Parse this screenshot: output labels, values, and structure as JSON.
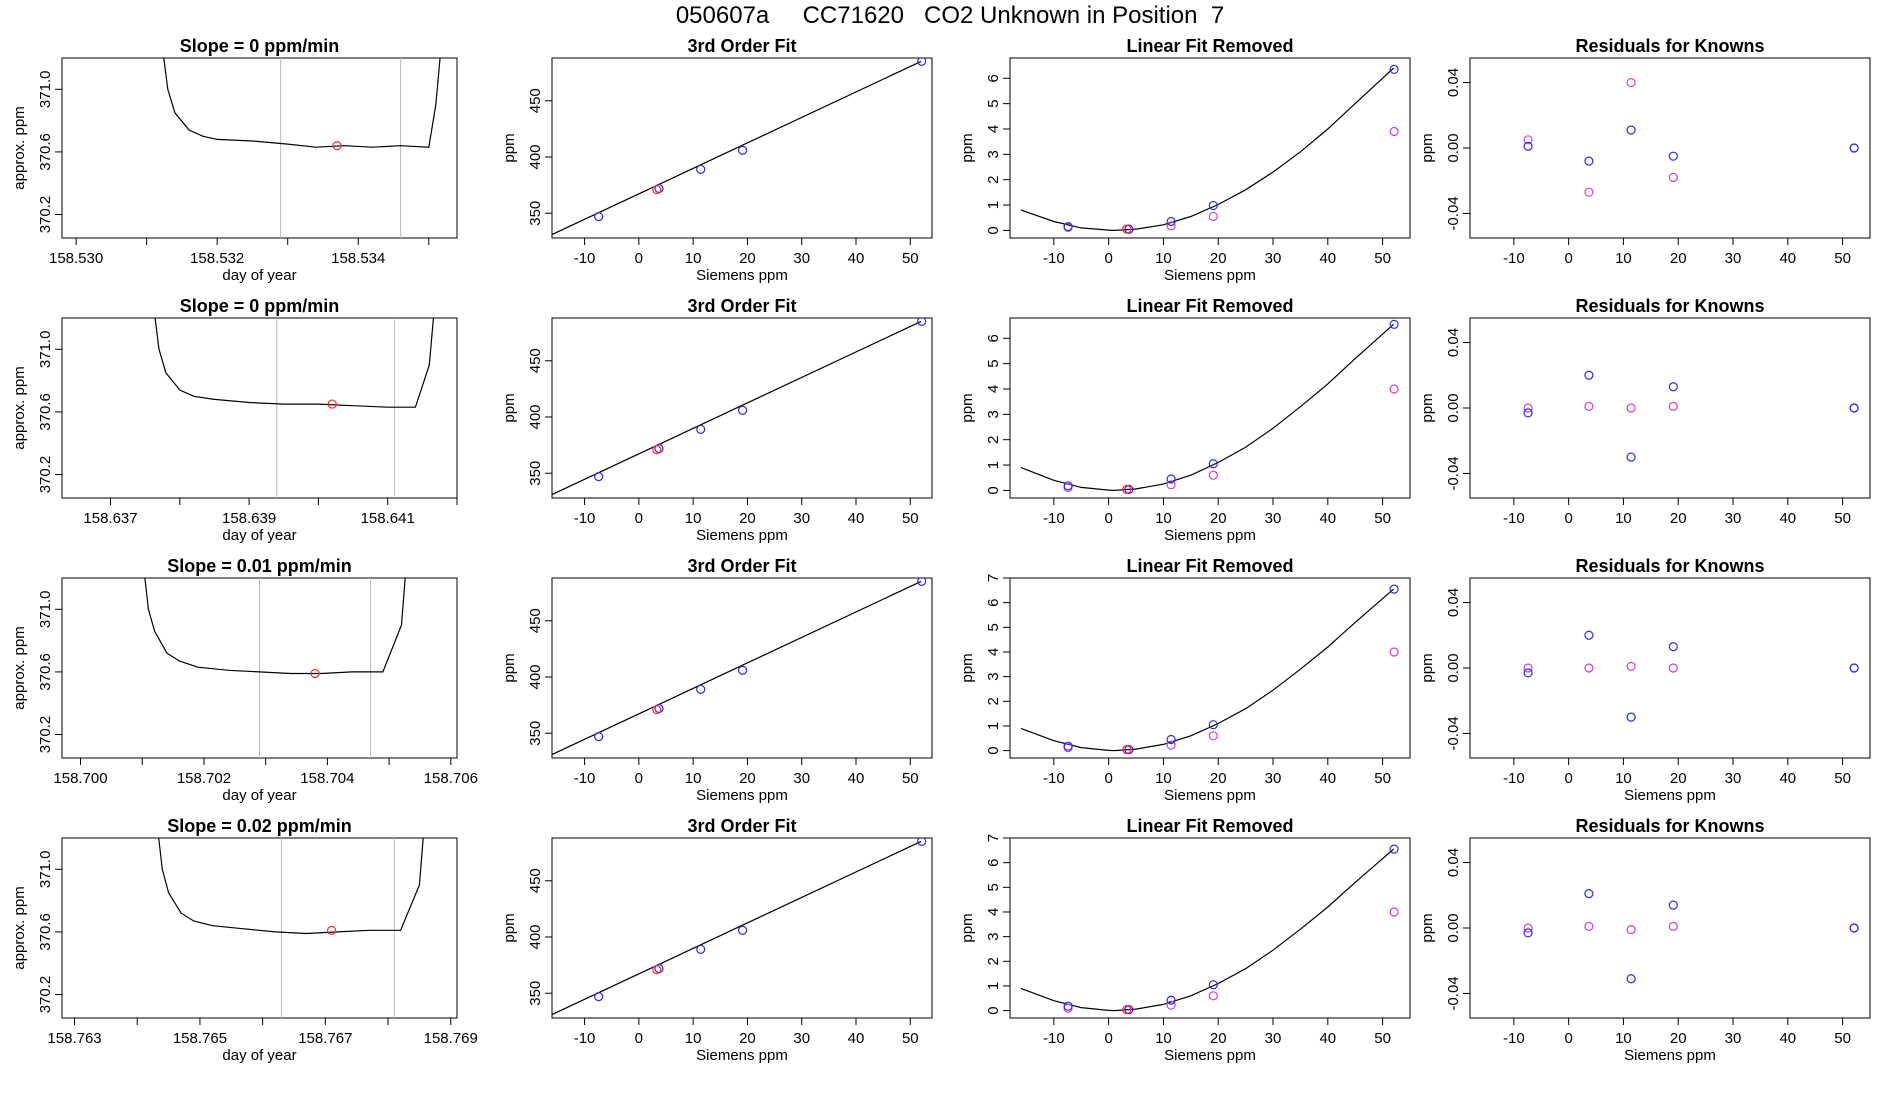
{
  "page": {
    "title": "050607a     CC71620   CO2 Unknown in Position  7"
  },
  "labels": {
    "fit_title": "3rd Order Fit",
    "linear_removed_title": "Linear Fit Removed",
    "residuals_title": "Residuals for Knowns",
    "siemens_xlabel": "Siemens ppm",
    "ppm_ylabel": "ppm",
    "doy_xlabel": "day of year",
    "approx_ylabel": "approx. ppm"
  },
  "colors": {
    "line": "#000000",
    "window_line": "#bbbbbb",
    "unknown_point": "#ff2a2a",
    "known_point": "#2a2aff",
    "alt_point": "#d23cd2"
  },
  "chart_data": [
    {
      "row": 1,
      "panel": "trace",
      "type": "line",
      "title": "Slope =  0  ppm/min",
      "xlabel": "day of year",
      "ylabel": "approx. ppm",
      "xlim": [
        158.5298,
        158.5354
      ],
      "ylim": [
        370.05,
        371.2
      ],
      "xticks": [
        158.53,
        158.531,
        158.532,
        158.533,
        158.534,
        158.535
      ],
      "xtick_labels": [
        "158.530",
        "",
        "158.532",
        "",
        "158.534",
        ""
      ],
      "yticks": [
        370.2,
        370.6,
        371.0
      ],
      "ytick_labels": [
        "370.2",
        "370.6",
        "371.0"
      ],
      "vlines": [
        158.5329,
        158.5346
      ],
      "x": [
        158.5312,
        158.5313,
        158.5314,
        158.5316,
        158.5318,
        158.532,
        158.5325,
        158.533,
        158.5334,
        158.5338,
        158.5342,
        158.5346,
        158.535,
        158.5351,
        158.5352
      ],
      "y": [
        371.35,
        371.0,
        370.85,
        370.74,
        370.7,
        370.68,
        370.67,
        370.65,
        370.63,
        370.64,
        370.63,
        370.64,
        370.63,
        370.9,
        371.4
      ],
      "marker": {
        "x": 158.5337,
        "y": 370.64
      }
    },
    {
      "row": 1,
      "panel": "fit",
      "type": "scatter",
      "title": "3rd Order Fit",
      "xlabel": "Siemens ppm",
      "ylabel": "ppm",
      "xlim": [
        -16,
        54
      ],
      "ylim": [
        328,
        488
      ],
      "xticks": [
        -10,
        0,
        10,
        20,
        30,
        40,
        50
      ],
      "yticks": [
        350,
        400,
        450
      ],
      "curve": {
        "x": [
          -16,
          52
        ],
        "y": [
          331,
          485
        ]
      },
      "knowns": {
        "x": [
          -7.4,
          3.7,
          11.4,
          19.1,
          52.1
        ],
        "y": [
          347,
          372,
          389,
          406,
          485
        ]
      },
      "unknown": {
        "x": [
          3.3
        ],
        "y": [
          371
        ]
      }
    },
    {
      "row": 1,
      "panel": "linear_removed",
      "type": "scatter",
      "title": "Linear Fit Removed",
      "xlabel": "Siemens ppm",
      "ylabel": "ppm",
      "xlim": [
        -18,
        55
      ],
      "ylim": [
        -0.3,
        6.8
      ],
      "xticks": [
        -10,
        0,
        10,
        20,
        30,
        40,
        50
      ],
      "yticks": [
        0,
        1,
        2,
        3,
        4,
        5,
        6
      ],
      "curve": {
        "x": [
          -16,
          -10,
          -5,
          0,
          1,
          5,
          10,
          15,
          20,
          25,
          30,
          35,
          40,
          45,
          52
        ],
        "y": [
          0.8,
          0.35,
          0.1,
          0.01,
          0.0,
          0.05,
          0.22,
          0.55,
          1.02,
          1.6,
          2.3,
          3.1,
          4.0,
          5.0,
          6.4
        ]
      },
      "knowns": {
        "x": [
          -7.4,
          3.7,
          11.4,
          19.1,
          52.1
        ],
        "y": [
          0.15,
          0.05,
          0.35,
          0.98,
          6.35
        ]
      },
      "alt": {
        "x": [
          -7.4,
          3.7,
          11.4,
          19.1,
          52.1
        ],
        "y": [
          0.12,
          0.04,
          0.18,
          0.55,
          3.9
        ]
      },
      "unknown": {
        "x": [
          3.3
        ],
        "y": [
          0.05
        ]
      }
    },
    {
      "row": 1,
      "panel": "residuals",
      "type": "scatter",
      "title": "Residuals for Knowns",
      "xlabel": "",
      "ylabel": "ppm",
      "xlim": [
        -18,
        55
      ],
      "ylim": [
        -0.055,
        0.055
      ],
      "xticks": [
        -10,
        0,
        10,
        20,
        30,
        40,
        50
      ],
      "yticks": [
        -0.04,
        0.0,
        0.04
      ],
      "ytick_labels": [
        "-0.04",
        "0.00",
        "0.04"
      ],
      "knowns": {
        "x": [
          -7.4,
          3.7,
          11.4,
          19.1,
          52.1
        ],
        "y": [
          0.001,
          -0.008,
          0.011,
          -0.005,
          0.0
        ]
      },
      "alt": {
        "x": [
          -7.4,
          3.7,
          11.4,
          19.1,
          52.1
        ],
        "y": [
          0.005,
          -0.027,
          0.04,
          -0.018,
          0.0
        ]
      }
    },
    {
      "row": 2,
      "panel": "trace",
      "type": "line",
      "title": "Slope =  0  ppm/min",
      "xlabel": "day of year",
      "ylabel": "approx. ppm",
      "xlim": [
        158.6363,
        158.642
      ],
      "ylim": [
        370.05,
        371.2
      ],
      "xticks": [
        158.637,
        158.638,
        158.639,
        158.64,
        158.641,
        158.642
      ],
      "xtick_labels": [
        "158.637",
        "",
        "158.639",
        "",
        "158.641",
        ""
      ],
      "yticks": [
        370.2,
        370.6,
        371.0
      ],
      "ytick_labels": [
        "370.2",
        "370.6",
        "371.0"
      ],
      "vlines": [
        158.6394,
        158.6411
      ],
      "x": [
        158.6376,
        158.6377,
        158.6378,
        158.638,
        158.6382,
        158.6385,
        158.639,
        158.6395,
        158.64,
        158.6405,
        158.641,
        158.6414,
        158.6416,
        158.6417
      ],
      "y": [
        371.35,
        371.0,
        370.85,
        370.74,
        370.7,
        370.68,
        370.66,
        370.65,
        370.65,
        370.64,
        370.63,
        370.63,
        370.9,
        371.4
      ],
      "marker": {
        "x": 158.6402,
        "y": 370.65
      }
    },
    {
      "row": 2,
      "panel": "fit",
      "type": "scatter",
      "title": "3rd Order Fit",
      "xlabel": "Siemens ppm",
      "ylabel": "ppm",
      "xlim": [
        -16,
        54
      ],
      "ylim": [
        328,
        488
      ],
      "xticks": [
        -10,
        0,
        10,
        20,
        30,
        40,
        50
      ],
      "yticks": [
        350,
        400,
        450
      ],
      "curve": {
        "x": [
          -16,
          52
        ],
        "y": [
          331,
          485
        ]
      },
      "knowns": {
        "x": [
          -7.4,
          3.7,
          11.4,
          19.1,
          52.1
        ],
        "y": [
          347,
          372,
          389,
          406,
          485
        ]
      },
      "unknown": {
        "x": [
          3.3
        ],
        "y": [
          371
        ]
      }
    },
    {
      "row": 2,
      "panel": "linear_removed",
      "type": "scatter",
      "title": "Linear Fit Removed",
      "xlabel": "Siemens ppm",
      "ylabel": "ppm",
      "xlim": [
        -18,
        55
      ],
      "ylim": [
        -0.3,
        6.8
      ],
      "xticks": [
        -10,
        0,
        10,
        20,
        30,
        40,
        50
      ],
      "yticks": [
        0,
        1,
        2,
        3,
        4,
        5,
        6
      ],
      "curve": {
        "x": [
          -16,
          -10,
          -5,
          0,
          1,
          5,
          10,
          15,
          20,
          25,
          30,
          35,
          40,
          45,
          52
        ],
        "y": [
          0.9,
          0.4,
          0.12,
          0.01,
          0.0,
          0.06,
          0.25,
          0.6,
          1.1,
          1.7,
          2.45,
          3.3,
          4.2,
          5.2,
          6.55
        ]
      },
      "knowns": {
        "x": [
          -7.4,
          3.7,
          11.4,
          19.1,
          52.1
        ],
        "y": [
          0.18,
          0.04,
          0.45,
          1.05,
          6.55
        ]
      },
      "alt": {
        "x": [
          -7.4,
          3.7,
          11.4,
          19.1,
          52.1
        ],
        "y": [
          0.12,
          0.04,
          0.22,
          0.6,
          4.0
        ]
      },
      "unknown": {
        "x": [
          3.3
        ],
        "y": [
          0.04
        ]
      }
    },
    {
      "row": 2,
      "panel": "residuals",
      "type": "scatter",
      "title": "Residuals for Knowns",
      "xlabel": "",
      "ylabel": "ppm",
      "xlim": [
        -18,
        55
      ],
      "ylim": [
        -0.055,
        0.055
      ],
      "xticks": [
        -10,
        0,
        10,
        20,
        30,
        40,
        50
      ],
      "yticks": [
        -0.04,
        0.0,
        0.04
      ],
      "ytick_labels": [
        "-0.04",
        "0.00",
        "0.04"
      ],
      "knowns": {
        "x": [
          -7.4,
          3.7,
          11.4,
          19.1,
          52.1
        ],
        "y": [
          -0.003,
          0.02,
          -0.03,
          0.013,
          0.0
        ]
      },
      "alt": {
        "x": [
          -7.4,
          3.7,
          11.4,
          19.1,
          52.1
        ],
        "y": [
          0.0,
          0.001,
          0.0,
          0.001,
          0.0
        ]
      }
    },
    {
      "row": 3,
      "panel": "trace",
      "type": "line",
      "title": "Slope =  0.01  ppm/min",
      "xlabel": "day of year",
      "ylabel": "approx. ppm",
      "xlim": [
        158.6997,
        158.7061
      ],
      "ylim": [
        370.05,
        371.2
      ],
      "xticks": [
        158.7,
        158.701,
        158.702,
        158.703,
        158.704,
        158.705,
        158.706
      ],
      "xtick_labels": [
        "158.700",
        "",
        "158.702",
        "",
        "158.704",
        "",
        "158.706"
      ],
      "yticks": [
        370.2,
        370.6,
        371.0
      ],
      "ytick_labels": [
        "370.2",
        "370.6",
        "371.0"
      ],
      "vlines": [
        158.7029,
        158.7047
      ],
      "x": [
        158.701,
        158.7011,
        158.7012,
        158.7014,
        158.7016,
        158.7019,
        158.7024,
        158.7029,
        158.7034,
        158.7039,
        158.7044,
        158.7049,
        158.7052,
        158.7053
      ],
      "y": [
        371.35,
        371.0,
        370.86,
        370.72,
        370.67,
        370.63,
        370.61,
        370.6,
        370.59,
        370.59,
        370.6,
        370.6,
        370.9,
        371.4
      ],
      "marker": {
        "x": 158.7038,
        "y": 370.59
      }
    },
    {
      "row": 3,
      "panel": "fit",
      "type": "scatter",
      "title": "3rd Order Fit",
      "xlabel": "Siemens ppm",
      "ylabel": "ppm",
      "xlim": [
        -16,
        54
      ],
      "ylim": [
        328,
        488
      ],
      "xticks": [
        -10,
        0,
        10,
        20,
        30,
        40,
        50
      ],
      "yticks": [
        350,
        400,
        450
      ],
      "curve": {
        "x": [
          -16,
          52
        ],
        "y": [
          331,
          485
        ]
      },
      "knowns": {
        "x": [
          -7.4,
          3.7,
          11.4,
          19.1,
          52.1
        ],
        "y": [
          347,
          372,
          389,
          406,
          485
        ]
      },
      "unknown": {
        "x": [
          3.3
        ],
        "y": [
          371
        ]
      }
    },
    {
      "row": 3,
      "panel": "linear_removed",
      "type": "scatter",
      "title": "Linear Fit Removed",
      "xlabel": "Siemens ppm",
      "ylabel": "ppm",
      "xlim": [
        -18,
        55
      ],
      "ylim": [
        -0.3,
        7.0
      ],
      "xticks": [
        -10,
        0,
        10,
        20,
        30,
        40,
        50
      ],
      "yticks": [
        0,
        1,
        2,
        3,
        4,
        5,
        6,
        7
      ],
      "curve": {
        "x": [
          -16,
          -10,
          -5,
          0,
          1,
          5,
          10,
          15,
          20,
          25,
          30,
          35,
          40,
          45,
          52
        ],
        "y": [
          0.9,
          0.4,
          0.12,
          0.01,
          0.0,
          0.06,
          0.25,
          0.6,
          1.1,
          1.7,
          2.45,
          3.3,
          4.2,
          5.2,
          6.55
        ]
      },
      "knowns": {
        "x": [
          -7.4,
          3.7,
          11.4,
          19.1,
          52.1
        ],
        "y": [
          0.18,
          0.04,
          0.45,
          1.05,
          6.55
        ]
      },
      "alt": {
        "x": [
          -7.4,
          3.7,
          11.4,
          19.1,
          52.1
        ],
        "y": [
          0.12,
          0.04,
          0.22,
          0.6,
          4.0
        ]
      },
      "unknown": {
        "x": [
          3.3
        ],
        "y": [
          0.04
        ]
      }
    },
    {
      "row": 3,
      "panel": "residuals",
      "type": "scatter",
      "title": "Residuals for Knowns",
      "xlabel": "Siemens ppm",
      "ylabel": "ppm",
      "xlim": [
        -18,
        55
      ],
      "ylim": [
        -0.055,
        0.055
      ],
      "xticks": [
        -10,
        0,
        10,
        20,
        30,
        40,
        50
      ],
      "yticks": [
        -0.04,
        0.0,
        0.04
      ],
      "ytick_labels": [
        "-0.04",
        "0.00",
        "0.04"
      ],
      "knowns": {
        "x": [
          -7.4,
          3.7,
          11.4,
          19.1,
          52.1
        ],
        "y": [
          -0.003,
          0.02,
          -0.03,
          0.013,
          0.0
        ]
      },
      "alt": {
        "x": [
          -7.4,
          3.7,
          11.4,
          19.1,
          52.1
        ],
        "y": [
          0.0,
          0.0,
          0.001,
          0.0,
          0.0
        ]
      }
    },
    {
      "row": 4,
      "panel": "trace",
      "type": "line",
      "title": "Slope =  0.02  ppm/min",
      "xlabel": "day of year",
      "ylabel": "approx. ppm",
      "xlim": [
        158.7628,
        158.7691
      ],
      "ylim": [
        370.05,
        371.2
      ],
      "xticks": [
        158.763,
        158.764,
        158.765,
        158.766,
        158.767,
        158.768,
        158.769
      ],
      "xtick_labels": [
        "158.763",
        "",
        "158.765",
        "",
        "158.767",
        "",
        "158.769"
      ],
      "yticks": [
        370.2,
        370.6,
        371.0
      ],
      "ytick_labels": [
        "370.2",
        "370.6",
        "371.0"
      ],
      "vlines": [
        158.7663,
        158.7681
      ],
      "x": [
        158.7643,
        158.7644,
        158.7645,
        158.7647,
        158.7649,
        158.7652,
        158.7657,
        158.7662,
        158.7667,
        158.7672,
        158.7677,
        158.7682,
        158.7685,
        158.7686
      ],
      "y": [
        371.35,
        371.0,
        370.85,
        370.72,
        370.67,
        370.64,
        370.62,
        370.6,
        370.59,
        370.6,
        370.61,
        370.61,
        370.9,
        371.4
      ],
      "marker": {
        "x": 158.7671,
        "y": 370.61
      }
    },
    {
      "row": 4,
      "panel": "fit",
      "type": "scatter",
      "title": "3rd Order Fit",
      "xlabel": "Siemens ppm",
      "ylabel": "ppm",
      "xlim": [
        -16,
        54
      ],
      "ylim": [
        328,
        488
      ],
      "xticks": [
        -10,
        0,
        10,
        20,
        30,
        40,
        50
      ],
      "yticks": [
        350,
        400,
        450
      ],
      "curve": {
        "x": [
          -16,
          52
        ],
        "y": [
          331,
          485
        ]
      },
      "knowns": {
        "x": [
          -7.4,
          3.7,
          11.4,
          19.1,
          52.1
        ],
        "y": [
          347,
          372,
          389,
          406,
          485
        ]
      },
      "unknown": {
        "x": [
          3.3
        ],
        "y": [
          371
        ]
      }
    },
    {
      "row": 4,
      "panel": "linear_removed",
      "type": "scatter",
      "title": "Linear Fit Removed",
      "xlabel": "Siemens ppm",
      "ylabel": "ppm",
      "xlim": [
        -18,
        55
      ],
      "ylim": [
        -0.3,
        7.0
      ],
      "xticks": [
        -10,
        0,
        10,
        20,
        30,
        40,
        50
      ],
      "yticks": [
        0,
        1,
        2,
        3,
        4,
        5,
        6,
        7
      ],
      "curve": {
        "x": [
          -16,
          -10,
          -5,
          0,
          1,
          5,
          10,
          15,
          20,
          25,
          30,
          35,
          40,
          45,
          52
        ],
        "y": [
          0.9,
          0.4,
          0.12,
          0.01,
          0.0,
          0.06,
          0.25,
          0.6,
          1.1,
          1.7,
          2.45,
          3.3,
          4.2,
          5.2,
          6.55
        ]
      },
      "knowns": {
        "x": [
          -7.4,
          3.7,
          11.4,
          19.1,
          52.1
        ],
        "y": [
          0.18,
          0.04,
          0.42,
          1.05,
          6.55
        ]
      },
      "alt": {
        "x": [
          -7.4,
          3.7,
          11.4,
          19.1,
          52.1
        ],
        "y": [
          0.1,
          0.04,
          0.22,
          0.6,
          4.0
        ]
      },
      "unknown": {
        "x": [
          3.3
        ],
        "y": [
          0.04
        ]
      }
    },
    {
      "row": 4,
      "panel": "residuals",
      "type": "scatter",
      "title": "Residuals for Knowns",
      "xlabel": "Siemens ppm",
      "ylabel": "ppm",
      "xlim": [
        -18,
        55
      ],
      "ylim": [
        -0.055,
        0.055
      ],
      "xticks": [
        -10,
        0,
        10,
        20,
        30,
        40,
        50
      ],
      "yticks": [
        -0.04,
        0.0,
        0.04
      ],
      "ytick_labels": [
        "-0.04",
        "0.00",
        "0.04"
      ],
      "knowns": {
        "x": [
          -7.4,
          3.7,
          11.4,
          19.1,
          52.1
        ],
        "y": [
          -0.003,
          0.021,
          -0.031,
          0.014,
          0.0
        ]
      },
      "alt": {
        "x": [
          -7.4,
          3.7,
          11.4,
          19.1,
          52.1
        ],
        "y": [
          0.0,
          0.001,
          -0.001,
          0.001,
          0.0
        ]
      }
    }
  ]
}
